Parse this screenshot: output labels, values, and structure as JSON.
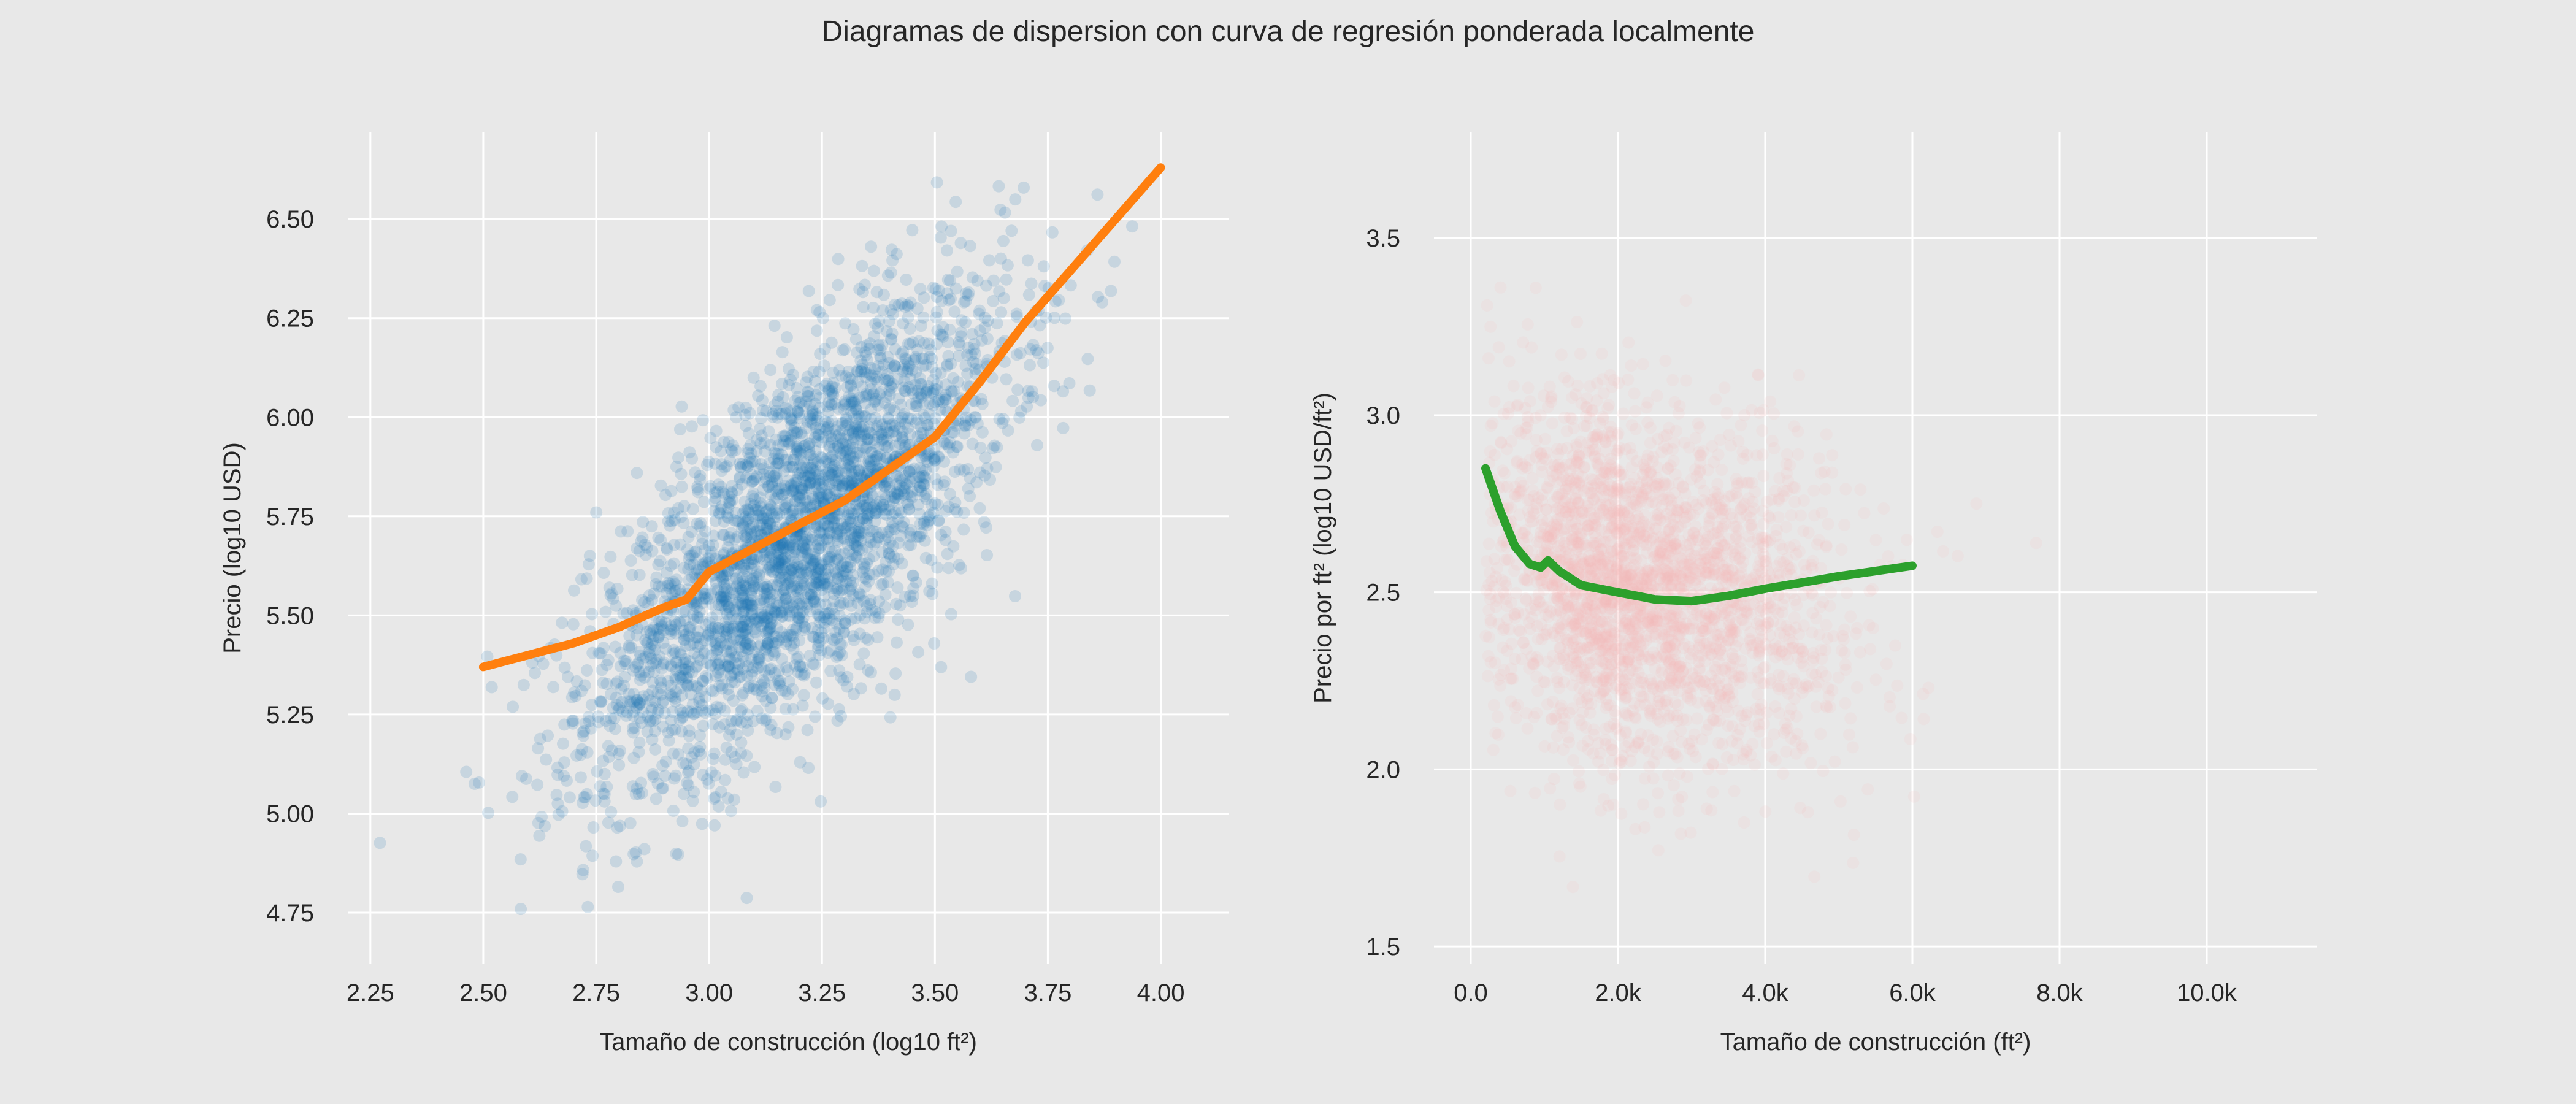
{
  "figure": {
    "title": "Diagramas de dispersion con curva de regresión ponderada localmente"
  },
  "chart_data": [
    {
      "type": "scatter",
      "xlabel": "Tamaño de construcción (log10 ft²)",
      "ylabel": "Precio (log10 USD)",
      "xlim": [
        2.2,
        4.15
      ],
      "ylim": [
        4.62,
        6.72
      ],
      "xticks": [
        "2.25",
        "2.50",
        "2.75",
        "3.00",
        "3.25",
        "3.50",
        "3.75",
        "4.00"
      ],
      "xtick_values": [
        2.25,
        2.5,
        2.75,
        3.0,
        3.25,
        3.5,
        3.75,
        4.0
      ],
      "yticks": [
        "4.75",
        "5.00",
        "5.25",
        "5.50",
        "5.75",
        "6.00",
        "6.25",
        "6.50"
      ],
      "ytick_values": [
        4.75,
        5.0,
        5.25,
        5.5,
        5.75,
        6.0,
        6.25,
        6.5
      ],
      "grid": true,
      "scatter_color": "#1f77b4",
      "scatter_cloud": {
        "center_x": 3.2,
        "center_y": 5.7,
        "sd_x": 0.23,
        "sd_y": 0.3,
        "correlation": 0.72,
        "x_range": [
          2.25,
          4.05
        ],
        "y_range": [
          4.7,
          6.6
        ]
      },
      "series": [
        {
          "color": "#ff7f0e",
          "x": [
            2.5,
            2.6,
            2.7,
            2.8,
            2.9,
            2.95,
            3.0,
            3.05,
            3.1,
            3.2,
            3.3,
            3.4,
            3.5,
            3.6,
            3.7,
            3.8,
            3.9,
            4.0
          ],
          "y": [
            5.37,
            5.4,
            5.43,
            5.47,
            5.52,
            5.54,
            5.61,
            5.64,
            5.67,
            5.73,
            5.79,
            5.87,
            5.95,
            6.09,
            6.24,
            6.37,
            6.5,
            6.63
          ]
        }
      ]
    },
    {
      "type": "scatter",
      "xlabel": "Tamaño de construcción (ft²)",
      "ylabel": "Precio por ft² (log10 USD/ft²)",
      "xlim": [
        -500,
        11500
      ],
      "ylim": [
        1.45,
        3.8
      ],
      "xticks": [
        "0.0",
        "2.0k",
        "4.0k",
        "6.0k",
        "8.0k",
        "10.0k"
      ],
      "xtick_values": [
        0,
        2000,
        4000,
        6000,
        8000,
        10000
      ],
      "yticks": [
        "1.5",
        "2.0",
        "2.5",
        "3.0",
        "3.5"
      ],
      "ytick_values": [
        1.5,
        2.0,
        2.5,
        3.0,
        3.5
      ],
      "grid": true,
      "scatter_color": "#f4b6b8",
      "scatter_cloud": {
        "center_x": 2200,
        "center_y": 2.52,
        "sd_x": 1100,
        "sd_y": 0.25,
        "correlation": -0.2,
        "x_range": [
          200,
          11000
        ],
        "y_range": [
          1.6,
          3.7
        ]
      },
      "series": [
        {
          "color": "#2ca02c",
          "x": [
            200,
            400,
            600,
            800,
            950,
            1050,
            1200,
            1500,
            2000,
            2500,
            3000,
            3500,
            4000,
            5000,
            6000
          ],
          "y": [
            2.85,
            2.73,
            2.63,
            2.58,
            2.57,
            2.59,
            2.56,
            2.52,
            2.5,
            2.48,
            2.475,
            2.49,
            2.51,
            2.545,
            2.575
          ]
        }
      ]
    }
  ]
}
